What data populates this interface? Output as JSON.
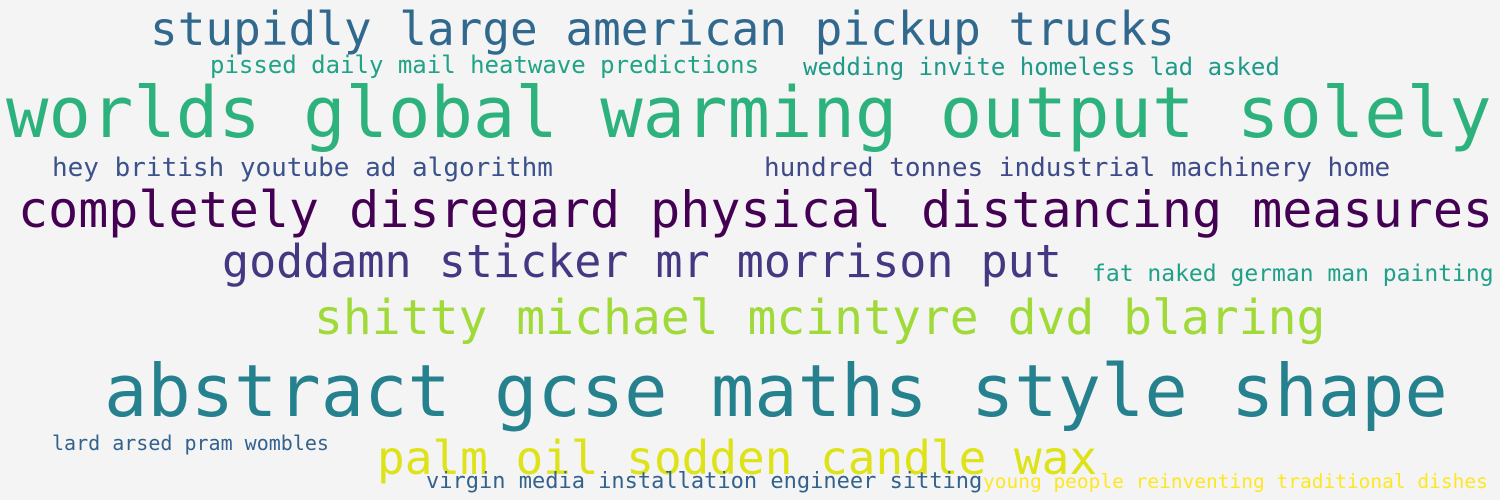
{
  "word_cloud": {
    "background": "#f4f4f4",
    "phrases": [
      {
        "text": "stupidly large american pickup trucks",
        "color": "#31688e"
      },
      {
        "text": "pissed daily mail heatwave predictions",
        "color": "#20a386"
      },
      {
        "text": "wedding invite homeless lad asked",
        "color": "#1f9a8a"
      },
      {
        "text": "worlds global warming output solely",
        "color": "#2db27d"
      },
      {
        "text": "hey british youtube ad algorithm",
        "color": "#3b528b"
      },
      {
        "text": "hundred tonnes industrial machinery home",
        "color": "#3e4a89"
      },
      {
        "text": "completely disregard physical distancing measures",
        "color": "#440154"
      },
      {
        "text": "goddamn sticker mr morrison put",
        "color": "#453781"
      },
      {
        "text": "fat naked german man painting",
        "color": "#1fa088"
      },
      {
        "text": "shitty michael mcintyre dvd blaring",
        "color": "#a0da39"
      },
      {
        "text": "abstract gcse maths style shape",
        "color": "#26818e"
      },
      {
        "text": "lard arsed pram wombles",
        "color": "#33628d"
      },
      {
        "text": "palm oil sodden candle wax",
        "color": "#dde318"
      },
      {
        "text": "virgin media installation engineer sitting",
        "color": "#33638d"
      },
      {
        "text": "young people reinventing traditional dishes",
        "color": "#fde725"
      }
    ]
  }
}
